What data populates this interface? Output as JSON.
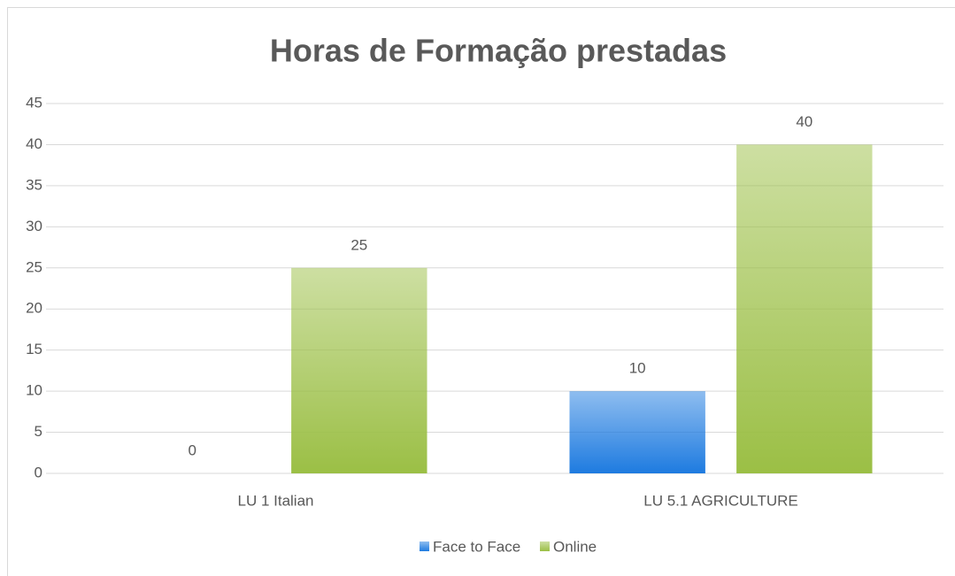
{
  "chart_data": {
    "type": "bar",
    "title": "Horas de Formação prestadas",
    "categories": [
      "LU 1 Italian",
      "LU 5.1 AGRICULTURE"
    ],
    "series": [
      {
        "name": "Face to Face",
        "color": "#1e7be0",
        "values": [
          0,
          10
        ]
      },
      {
        "name": "Online",
        "color": "#9bbf45",
        "values": [
          25,
          40
        ]
      }
    ],
    "ylim": [
      0,
      45
    ],
    "yticks": [
      0,
      5,
      10,
      15,
      20,
      25,
      30,
      35,
      40,
      45
    ],
    "grid": true,
    "legend": "bottom"
  }
}
